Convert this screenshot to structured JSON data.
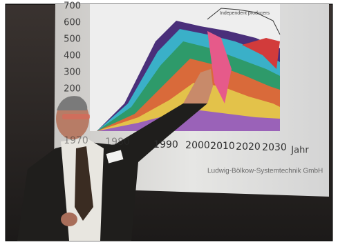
{
  "slide": {
    "y_labels": [
      "700",
      "600",
      "500",
      "400",
      "300",
      "200"
    ],
    "x_labels": [
      "1970",
      "1980",
      "1990",
      "2000",
      "2010",
      "2020",
      "2030"
    ],
    "x_unit": "Jahr",
    "annotation": "Independent producers",
    "credit": "Ludwig-Bölkow-Systemtechnik GmbH"
  }
}
